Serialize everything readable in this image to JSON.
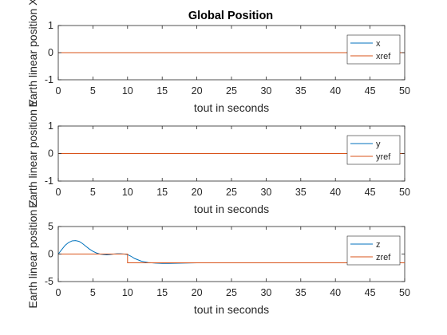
{
  "figure_title": "Global Position",
  "colors": {
    "series": "#0072BD",
    "reference": "#D95319",
    "axis": "#262626"
  },
  "chart_data": [
    {
      "type": "line",
      "title": "Global Position",
      "xlabel": "tout in seconds",
      "ylabel": "Earth linear position X",
      "xlim": [
        0,
        50
      ],
      "ylim": [
        -1,
        1
      ],
      "xticks": [
        0,
        5,
        10,
        15,
        20,
        25,
        30,
        35,
        40,
        45,
        50
      ],
      "yticks": [
        -1,
        0,
        1
      ],
      "grid": false,
      "legend_position": "top-right",
      "series": [
        {
          "name": "x",
          "color": "#0072BD",
          "x": [
            0,
            50
          ],
          "y": [
            0,
            0
          ]
        },
        {
          "name": "xref",
          "color": "#D95319",
          "x": [
            0,
            50
          ],
          "y": [
            0,
            0
          ]
        }
      ]
    },
    {
      "type": "line",
      "title": "",
      "xlabel": "tout in seconds",
      "ylabel": "Earth linear position Y",
      "xlim": [
        0,
        50
      ],
      "ylim": [
        -1,
        1
      ],
      "xticks": [
        0,
        5,
        10,
        15,
        20,
        25,
        30,
        35,
        40,
        45,
        50
      ],
      "yticks": [
        -1,
        0,
        1
      ],
      "grid": false,
      "legend_position": "top-right",
      "series": [
        {
          "name": "y",
          "color": "#0072BD",
          "x": [
            0,
            50
          ],
          "y": [
            0,
            0
          ]
        },
        {
          "name": "yref",
          "color": "#D95319",
          "x": [
            0,
            50
          ],
          "y": [
            0,
            0
          ]
        }
      ]
    },
    {
      "type": "line",
      "title": "",
      "xlabel": "tout in seconds",
      "ylabel": "Earth linear position Z",
      "xlim": [
        0,
        50
      ],
      "ylim": [
        -5,
        5
      ],
      "xticks": [
        0,
        5,
        10,
        15,
        20,
        25,
        30,
        35,
        40,
        45,
        50
      ],
      "yticks": [
        -5,
        0,
        5
      ],
      "grid": false,
      "legend_position": "top-right",
      "series": [
        {
          "name": "z",
          "color": "#0072BD",
          "x": [
            0,
            0.5,
            1,
            1.5,
            2,
            2.5,
            3,
            3.5,
            4,
            4.5,
            5,
            5.5,
            6,
            6.5,
            7,
            7.5,
            8,
            8.5,
            9,
            9.5,
            10,
            10.5,
            11,
            12,
            13,
            14,
            15,
            16,
            18,
            20,
            25,
            30,
            40,
            50
          ],
          "y": [
            0,
            0.8,
            1.6,
            2.1,
            2.4,
            2.45,
            2.3,
            1.9,
            1.4,
            0.9,
            0.5,
            0.2,
            0.0,
            -0.1,
            -0.15,
            -0.1,
            0,
            0.05,
            0.05,
            0.0,
            -0.1,
            -0.4,
            -0.8,
            -1.3,
            -1.55,
            -1.65,
            -1.7,
            -1.7,
            -1.65,
            -1.6,
            -1.6,
            -1.6,
            -1.6,
            -1.6
          ]
        },
        {
          "name": "zref",
          "color": "#D95319",
          "x": [
            0,
            10,
            10,
            50
          ],
          "y": [
            0,
            0,
            -1.6,
            -1.6
          ]
        }
      ]
    }
  ]
}
